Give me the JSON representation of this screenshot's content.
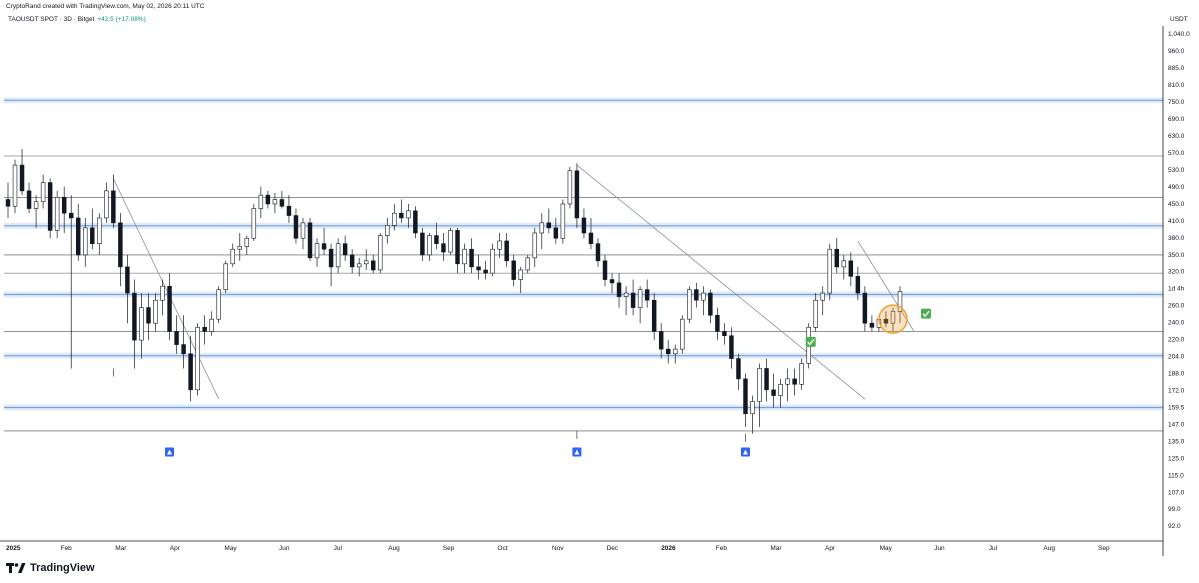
{
  "header": {
    "credit": "CryptoRand created with TradingView.com, May 02, 2026 20:11 UTC",
    "symbol": "TAOUSDT SPOT · 3D · Bitget",
    "change": "+42.5 (+17.08%)",
    "currency": "USDT"
  },
  "brand": {
    "name": "TradingView",
    "logo_icon": "tradingview-logo-icon"
  },
  "colors": {
    "candle_up_body": "#ffffff",
    "candle_down_body": "#131722",
    "candle_outline": "#131722",
    "support_zone": "#5b8ed6",
    "level_line": "#131722",
    "trend_line": "#8a8f98",
    "highlight_circle": "#f0a030",
    "check_badge": "#4caf50"
  },
  "chart_data": {
    "type": "candlestick",
    "x_axis_labels": [
      "2025",
      "Feb",
      "Mar",
      "Apr",
      "May",
      "Jun",
      "Jul",
      "Aug",
      "Sep",
      "Oct",
      "Nov",
      "Dec",
      "2026",
      "Feb",
      "Mar",
      "Apr",
      "May",
      "Jun",
      "Jul",
      "Aug",
      "Sep"
    ],
    "y_axis_labels": [
      "1,040.0",
      "960.0",
      "885.0",
      "810.0",
      "750.0",
      "690.0",
      "630.0",
      "570.0",
      "530.0",
      "490.0",
      "450.0",
      "410.0",
      "380.0",
      "350.0",
      "320.0",
      "1d 4h",
      "260.0",
      "240.0",
      "220.0",
      "204.0",
      "188.0",
      "172.0",
      "159.5",
      "147.0",
      "135.0",
      "125.0",
      "115.0",
      "107.0",
      "99.0",
      "92.0"
    ],
    "y_scale": "log",
    "ylim": [
      88,
      1100
    ],
    "horizontal_levels": [
      570,
      465,
      350,
      320,
      240,
      147
    ],
    "support_zones": [
      750,
      404,
      288,
      213,
      165
    ],
    "annotations": [
      "check",
      "check",
      "circle",
      "rocket",
      "rocket",
      "rocket"
    ],
    "ohlc": [
      [
        460,
        500,
        420,
        445
      ],
      [
        445,
        560,
        430,
        545
      ],
      [
        545,
        590,
        470,
        480
      ],
      [
        480,
        500,
        430,
        440
      ],
      [
        440,
        470,
        400,
        455
      ],
      [
        455,
        520,
        440,
        500
      ],
      [
        500,
        510,
        380,
        395
      ],
      [
        395,
        480,
        380,
        465
      ],
      [
        465,
        490,
        390,
        430
      ],
      [
        430,
        470,
        200,
        420
      ],
      [
        420,
        450,
        340,
        350
      ],
      [
        350,
        420,
        330,
        400
      ],
      [
        400,
        440,
        360,
        370
      ],
      [
        370,
        430,
        350,
        420
      ],
      [
        420,
        500,
        410,
        480
      ],
      [
        480,
        520,
        400,
        410
      ],
      [
        410,
        430,
        300,
        330
      ],
      [
        330,
        350,
        250,
        290
      ],
      [
        290,
        310,
        200,
        230
      ],
      [
        230,
        290,
        210,
        270
      ],
      [
        270,
        290,
        230,
        250
      ],
      [
        250,
        290,
        240,
        280
      ],
      [
        280,
        310,
        260,
        300
      ],
      [
        300,
        320,
        230,
        240
      ],
      [
        240,
        260,
        215,
        225
      ],
      [
        225,
        260,
        200,
        215
      ],
      [
        215,
        235,
        170,
        180
      ],
      [
        180,
        250,
        175,
        245
      ],
      [
        245,
        260,
        225,
        240
      ],
      [
        240,
        265,
        235,
        255
      ],
      [
        255,
        300,
        250,
        295
      ],
      [
        295,
        340,
        290,
        335
      ],
      [
        335,
        370,
        330,
        360
      ],
      [
        360,
        390,
        340,
        365
      ],
      [
        365,
        385,
        350,
        380
      ],
      [
        380,
        450,
        375,
        440
      ],
      [
        440,
        490,
        420,
        470
      ],
      [
        470,
        480,
        440,
        450
      ],
      [
        450,
        475,
        430,
        460
      ],
      [
        460,
        480,
        440,
        445
      ],
      [
        445,
        470,
        410,
        425
      ],
      [
        425,
        440,
        370,
        380
      ],
      [
        380,
        420,
        360,
        410
      ],
      [
        410,
        420,
        340,
        345
      ],
      [
        345,
        380,
        330,
        370
      ],
      [
        370,
        400,
        350,
        360
      ],
      [
        360,
        370,
        300,
        330
      ],
      [
        330,
        380,
        320,
        370
      ],
      [
        370,
        385,
        340,
        350
      ],
      [
        350,
        360,
        320,
        330
      ],
      [
        330,
        345,
        315,
        335
      ],
      [
        335,
        360,
        325,
        340
      ],
      [
        340,
        350,
        320,
        325
      ],
      [
        325,
        390,
        320,
        385
      ],
      [
        385,
        420,
        370,
        405
      ],
      [
        405,
        450,
        395,
        430
      ],
      [
        430,
        460,
        410,
        420
      ],
      [
        420,
        450,
        400,
        435
      ],
      [
        435,
        445,
        380,
        390
      ],
      [
        390,
        400,
        340,
        350
      ],
      [
        350,
        390,
        340,
        385
      ],
      [
        385,
        410,
        360,
        370
      ],
      [
        370,
        390,
        340,
        355
      ],
      [
        355,
        400,
        350,
        395
      ],
      [
        395,
        400,
        320,
        335
      ],
      [
        335,
        370,
        320,
        360
      ],
      [
        360,
        380,
        320,
        330
      ],
      [
        330,
        350,
        310,
        325
      ],
      [
        325,
        340,
        310,
        320
      ],
      [
        320,
        370,
        315,
        360
      ],
      [
        360,
        390,
        345,
        375
      ],
      [
        375,
        390,
        330,
        340
      ],
      [
        340,
        350,
        300,
        310
      ],
      [
        310,
        330,
        290,
        325
      ],
      [
        325,
        350,
        320,
        345
      ],
      [
        345,
        400,
        330,
        390
      ],
      [
        390,
        430,
        360,
        410
      ],
      [
        410,
        440,
        390,
        400
      ],
      [
        400,
        420,
        370,
        380
      ],
      [
        380,
        460,
        370,
        450
      ],
      [
        450,
        540,
        440,
        530
      ],
      [
        530,
        550,
        400,
        420
      ],
      [
        420,
        440,
        380,
        390
      ],
      [
        390,
        420,
        360,
        370
      ],
      [
        370,
        380,
        330,
        340
      ],
      [
        340,
        350,
        300,
        310
      ],
      [
        310,
        320,
        290,
        305
      ],
      [
        305,
        320,
        270,
        285
      ],
      [
        285,
        300,
        260,
        290
      ],
      [
        290,
        310,
        260,
        270
      ],
      [
        270,
        300,
        250,
        295
      ],
      [
        295,
        310,
        270,
        280
      ],
      [
        280,
        290,
        230,
        240
      ],
      [
        240,
        250,
        210,
        220
      ],
      [
        220,
        230,
        205,
        215
      ],
      [
        215,
        225,
        205,
        220
      ],
      [
        220,
        260,
        215,
        255
      ],
      [
        255,
        300,
        250,
        295
      ],
      [
        295,
        305,
        270,
        280
      ],
      [
        280,
        300,
        260,
        290
      ],
      [
        290,
        295,
        250,
        260
      ],
      [
        260,
        270,
        230,
        240
      ],
      [
        240,
        250,
        225,
        235
      ],
      [
        235,
        245,
        200,
        210
      ],
      [
        210,
        215,
        180,
        190
      ],
      [
        190,
        195,
        150,
        160
      ],
      [
        160,
        175,
        145,
        170
      ],
      [
        170,
        205,
        150,
        200
      ],
      [
        200,
        210,
        170,
        180
      ],
      [
        180,
        195,
        165,
        175
      ],
      [
        175,
        190,
        165,
        185
      ],
      [
        185,
        200,
        170,
        190
      ],
      [
        190,
        200,
        175,
        185
      ],
      [
        185,
        210,
        180,
        205
      ],
      [
        205,
        250,
        200,
        245
      ],
      [
        245,
        290,
        240,
        280
      ],
      [
        280,
        300,
        260,
        290
      ],
      [
        290,
        370,
        280,
        360
      ],
      [
        360,
        380,
        320,
        330
      ],
      [
        330,
        350,
        310,
        340
      ],
      [
        340,
        355,
        300,
        315
      ],
      [
        315,
        330,
        280,
        290
      ],
      [
        290,
        300,
        240,
        250
      ],
      [
        250,
        260,
        240,
        245
      ],
      [
        245,
        260,
        240,
        255
      ],
      [
        255,
        265,
        245,
        250
      ],
      [
        250,
        270,
        240,
        265
      ],
      [
        265,
        300,
        250,
        292
      ]
    ]
  }
}
